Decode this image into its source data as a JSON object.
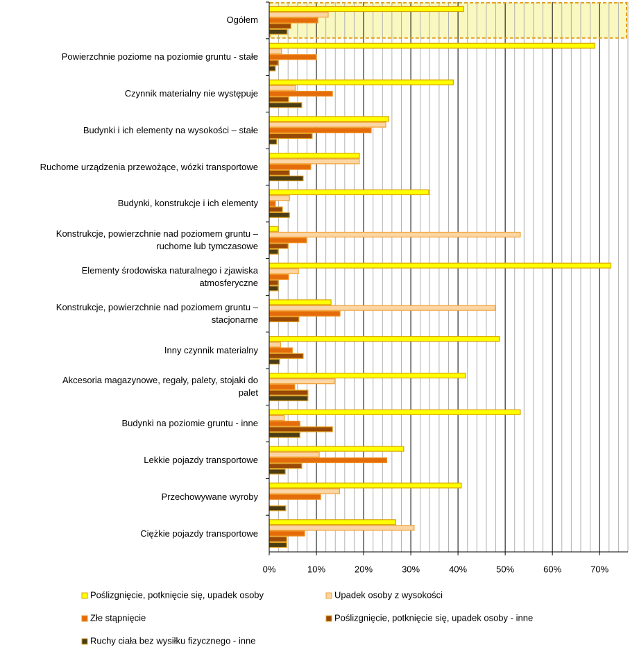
{
  "chart_data": {
    "type": "barh",
    "categories": [
      "Ogółem",
      "Powierzchnie poziome na poziomie gruntu - stałe",
      "Czynnik materialny nie występuje",
      "Budynki i ich elementy na wysokości – stałe",
      "Ruchome urządzenia przewożące, wózki transportowe",
      "Budynki, konstrukcje i ich elementy",
      "Konstrukcje, powierzchnie nad poziomem gruntu –\nruchome lub tymczasowe",
      "Elementy środowiska naturalnego i zjawiska\natmosferyczne",
      "Konstrukcje, powierzchnie nad poziomem gruntu –\nstacjonarne",
      "Inny czynnik materialny",
      "Akcesoria magazynowe, regały, palety, stojaki do\npalet",
      "Budynki na poziomie gruntu - inne",
      "Lekkie pojazdy transportowe",
      "Przechowywane wyroby",
      "Ciężkie pojazdy transportowe"
    ],
    "series": [
      {
        "name": "Poślizgnięcie, potknięcie się, upadek osoby",
        "color": "#ffff00",
        "edgecolor": "#d9a400",
        "values": [
          41.2,
          69,
          39,
          25.3,
          19.1,
          33.8,
          1.9,
          72.4,
          13.1,
          48.8,
          41.6,
          53.2,
          28.5,
          40.7,
          26.8
        ]
      },
      {
        "name": "Upadek osoby z wysokości",
        "color": "#fcd5a4",
        "edgecolor": "#f0a030",
        "values": [
          12.5,
          2.6,
          5.6,
          24.7,
          19.1,
          4.3,
          53.2,
          6.2,
          47.9,
          2.4,
          13.8,
          3.2,
          10.6,
          14.9,
          30.7
        ]
      },
      {
        "name": "Złe stąpnięcie",
        "color": "#e46c0a",
        "edgecolor": "#f09020",
        "values": [
          10.3,
          10,
          13.4,
          21.6,
          8.8,
          1.3,
          7.9,
          4.1,
          15,
          4.9,
          5.4,
          6.5,
          24.9,
          10.9,
          7.5
        ]
      },
      {
        "name": "Poślizgnięcie, potknięcie się, upadek osoby - inne",
        "color": "#984807",
        "edgecolor": "#e0a020",
        "values": [
          4.6,
          1.9,
          4.1,
          9.1,
          4.3,
          2.8,
          4,
          1.9,
          6.3,
          7.2,
          8.2,
          13.4,
          6.9,
          null,
          3.7
        ]
      },
      {
        "name": "Ruchy ciała bez wysiłku fizycznego - inne",
        "color": "#4a3c14",
        "edgecolor": "#e0a020",
        "values": [
          3.8,
          1.3,
          6.9,
          1.6,
          7.2,
          4.3,
          1.9,
          1.9,
          null,
          2.2,
          8.2,
          6.5,
          3.4,
          3.5,
          3.7
        ]
      }
    ],
    "xlim": [
      0,
      76
    ],
    "xticks": [
      {
        "value": 0,
        "label": "0%"
      },
      {
        "value": 10,
        "label": "10%"
      },
      {
        "value": 20,
        "label": "20%"
      },
      {
        "value": 30,
        "label": "30%"
      },
      {
        "value": 40,
        "label": "40%"
      },
      {
        "value": 50,
        "label": "50%"
      },
      {
        "value": 60,
        "label": "60%"
      },
      {
        "value": 70,
        "label": "70%"
      }
    ],
    "minor_xticks": [
      2,
      4,
      6,
      8,
      12,
      14,
      16,
      18,
      22,
      24,
      26,
      28,
      32,
      34,
      36,
      38,
      42,
      44,
      46,
      48,
      52,
      54,
      56,
      58,
      62,
      64,
      66,
      68,
      72,
      74,
      76
    ],
    "grid": true,
    "legend": "bottom"
  }
}
